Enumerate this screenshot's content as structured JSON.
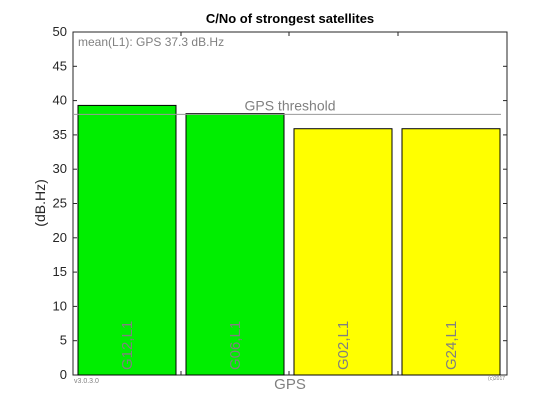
{
  "chart_data": {
    "type": "bar",
    "title": "C/No of strongest satellites",
    "ylabel": "(dB.Hz)",
    "xlabel": "GPS",
    "ylim": [
      0,
      50
    ],
    "yticks": [
      0,
      5,
      10,
      15,
      20,
      25,
      30,
      35,
      40,
      45,
      50
    ],
    "grid": false,
    "categories": [
      "G12,L1",
      "G06,L1",
      "G02,L1",
      "G24,L1"
    ],
    "values": [
      39.3,
      38.1,
      35.9,
      35.9
    ],
    "bar_colors": [
      "#00ee00",
      "#00ee00",
      "#ffff00",
      "#ffff00"
    ],
    "threshold": {
      "label": "GPS threshold",
      "value": 38
    },
    "annotation": "mean(L1): GPS 37.3 dB.Hz",
    "version_label": "v3.0.3.0",
    "copyright_label": "(c)2017"
  },
  "colors": {
    "axis": "#262626",
    "threshold_line": "#999999",
    "muted_text": "#808080",
    "bar_edge": "#000000"
  }
}
